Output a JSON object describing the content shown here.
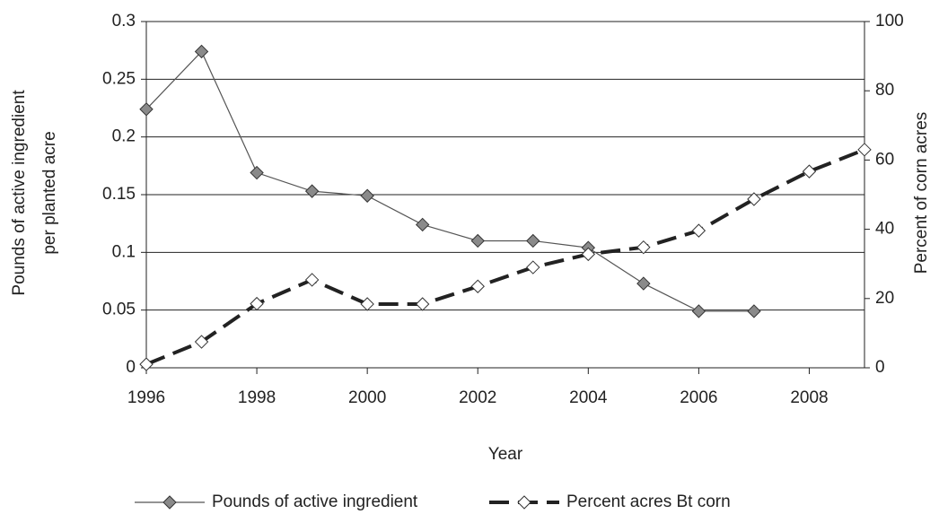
{
  "chart_data": {
    "type": "line",
    "xlabel": "Year",
    "ylabel": [
      "Pounds of active ingredient",
      "per planted acre"
    ],
    "y2label": "Percent of corn acres",
    "x": [
      1996,
      1997,
      1998,
      1999,
      2000,
      2001,
      2002,
      2003,
      2004,
      2005,
      2006,
      2007,
      2008,
      2009
    ],
    "xlim": [
      1996,
      2009
    ],
    "xticks": [
      1996,
      1998,
      2000,
      2002,
      2004,
      2006,
      2008
    ],
    "ylim": [
      0,
      0.3
    ],
    "yticks": [
      0,
      0.05,
      0.1,
      0.15,
      0.2,
      0.25,
      0.3
    ],
    "y2lim": [
      0,
      100
    ],
    "y2ticks": [
      0,
      20,
      40,
      60,
      80,
      100
    ],
    "grid": true,
    "series": [
      {
        "name": "Pounds of active ingredient",
        "color": "#555555",
        "marker_fill": "#8a8a8a",
        "dash": false,
        "values": [
          0.224,
          0.274,
          0.169,
          0.153,
          0.149,
          0.124,
          0.11,
          0.11,
          0.104,
          0.073,
          0.049,
          0.049,
          null,
          null
        ]
      },
      {
        "name": "Percent acres Bt corn",
        "color": "#222222",
        "marker_fill": "#ffffff",
        "dash": true,
        "axis": "y2",
        "values": [
          1,
          7.5,
          18.5,
          25.4,
          18.4,
          18.4,
          23.5,
          29,
          32.8,
          34.8,
          39.6,
          48.7,
          56.7,
          63
        ]
      }
    ]
  }
}
